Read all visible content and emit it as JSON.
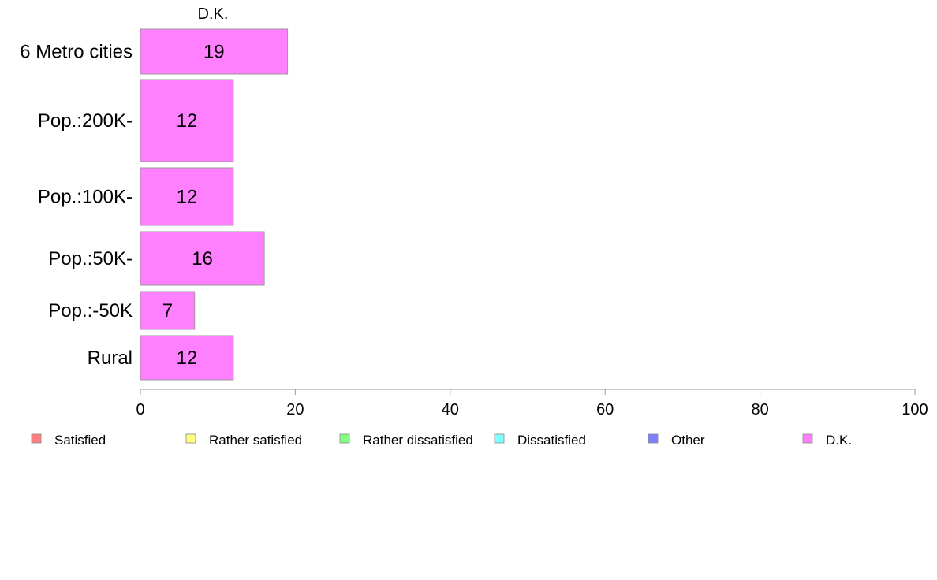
{
  "chart_data": {
    "type": "bar",
    "orientation": "horizontal",
    "column_title": "D.K.",
    "categories": [
      "6 Metro cities",
      "Pop.:200K-",
      "Pop.:100K-",
      "Pop.:50K-",
      "Pop.:-50K",
      "Rural"
    ],
    "series": [
      {
        "name": "D.K.",
        "values": [
          19,
          12,
          12,
          16,
          7,
          12
        ]
      }
    ],
    "xlim": [
      0,
      100
    ],
    "xticks": [
      0,
      20,
      40,
      60,
      80,
      100
    ],
    "bar_color": "#ff80ff",
    "legend": [
      {
        "label": "Satisfied",
        "color": "#ff8080"
      },
      {
        "label": "Rather satisfied",
        "color": "#ffff80"
      },
      {
        "label": "Rather dissatisfied",
        "color": "#80ff80"
      },
      {
        "label": "Dissatisfied",
        "color": "#80ffff"
      },
      {
        "label": "Other",
        "color": "#8080ff"
      },
      {
        "label": "D.K.",
        "color": "#ff80ff"
      }
    ],
    "legend_position": "bottom",
    "grid": false
  }
}
